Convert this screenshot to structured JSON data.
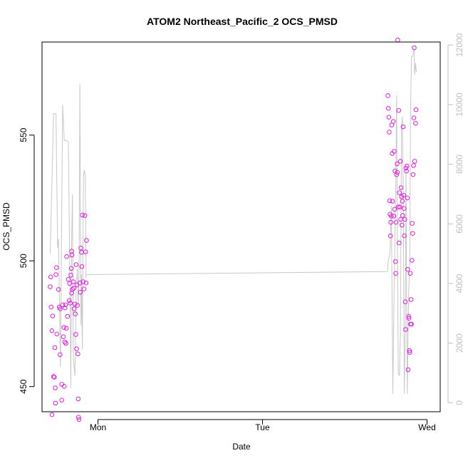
{
  "chart_data": {
    "type": "scatter",
    "title": "ATOM2 Northeast_Pacific_2 OCS_PMSD",
    "xlabel": "Date",
    "ylabel": "OCS_PMSD",
    "x_axis": {
      "ticks": [
        {
          "day": 1.0,
          "label": "Mon"
        },
        {
          "day": 2.0,
          "label": "Tue"
        },
        {
          "day": 3.0,
          "label": "Wed"
        }
      ],
      "range_days": [
        0.66,
        3.08
      ]
    },
    "y_left": {
      "range": [
        440,
        587
      ],
      "ticks": [
        450,
        500,
        550
      ]
    },
    "y_right": {
      "range": [
        -300,
        12100
      ],
      "ticks": [
        0,
        2000,
        4000,
        6000,
        8000,
        10000,
        12000
      ],
      "color": "#bfbfbf"
    },
    "points_color": "#e11de1",
    "line_color": "#c8c8c8",
    "points": [
      [
        0.713,
        493.6
      ],
      [
        0.71,
        489.7
      ],
      [
        0.715,
        481.6
      ],
      [
        0.72,
        472.2
      ],
      [
        0.72,
        438.8
      ],
      [
        0.725,
        478.1
      ],
      [
        0.73,
        454.0
      ],
      [
        0.735,
        453.7
      ],
      [
        0.738,
        465.5
      ],
      [
        0.74,
        449.5
      ],
      [
        0.742,
        443.4
      ],
      [
        0.745,
        494.5
      ],
      [
        0.748,
        497.3
      ],
      [
        0.75,
        470.9
      ],
      [
        0.76,
        488.6
      ],
      [
        0.765,
        481.6
      ],
      [
        0.77,
        480.9
      ],
      [
        0.77,
        462.7
      ],
      [
        0.78,
        450.9
      ],
      [
        0.78,
        444.6
      ],
      [
        0.785,
        482.5
      ],
      [
        0.79,
        469.8
      ],
      [
        0.793,
        473.5
      ],
      [
        0.795,
        450.1
      ],
      [
        0.798,
        467.7
      ],
      [
        0.8,
        481.3
      ],
      [
        0.803,
        482.5
      ],
      [
        0.805,
        467.2
      ],
      [
        0.808,
        473.2
      ],
      [
        0.81,
        501.7
      ],
      [
        0.815,
        477.9
      ],
      [
        0.82,
        492.6
      ],
      [
        0.825,
        484.2
      ],
      [
        0.828,
        491.0
      ],
      [
        0.832,
        483.2
      ],
      [
        0.835,
        494.3
      ],
      [
        0.838,
        497.0
      ],
      [
        0.84,
        487.2
      ],
      [
        0.84,
        503.8
      ],
      [
        0.842,
        502.3
      ],
      [
        0.845,
        488.6
      ],
      [
        0.85,
        491.7
      ],
      [
        0.852,
        489.1
      ],
      [
        0.855,
        480.9
      ],
      [
        0.86,
        482.8
      ],
      [
        0.862,
        478.9
      ],
      [
        0.865,
        470.7
      ],
      [
        0.868,
        498.5
      ],
      [
        0.87,
        465.0
      ],
      [
        0.872,
        490.4
      ],
      [
        0.875,
        482.3
      ],
      [
        0.878,
        463.0
      ],
      [
        0.88,
        445.1
      ],
      [
        0.882,
        437.8
      ],
      [
        0.885,
        436.9
      ],
      [
        0.89,
        491.2
      ],
      [
        0.893,
        487.5
      ],
      [
        0.896,
        505.1
      ],
      [
        0.9,
        503.4
      ],
      [
        0.902,
        497.7
      ],
      [
        0.905,
        518.2
      ],
      [
        0.91,
        491.7
      ],
      [
        0.915,
        488.8
      ],
      [
        0.92,
        518.0
      ],
      [
        0.925,
        503.6
      ],
      [
        0.928,
        491.2
      ],
      [
        0.93,
        508.1
      ],
      [
        2.762,
        565.7
      ],
      [
        2.765,
        560.6
      ],
      [
        2.768,
        557.1
      ],
      [
        2.77,
        551.2
      ],
      [
        2.773,
        523.9
      ],
      [
        2.775,
        518.5
      ],
      [
        2.778,
        509.9
      ],
      [
        2.78,
        515.3
      ],
      [
        2.783,
        517.8
      ],
      [
        2.785,
        554.0
      ],
      [
        2.788,
        542.7
      ],
      [
        2.79,
        523.7
      ],
      [
        2.795,
        555.4
      ],
      [
        2.798,
        517.8
      ],
      [
        2.8,
        543.5
      ],
      [
        2.803,
        520.5
      ],
      [
        2.805,
        535.7
      ],
      [
        2.808,
        499.7
      ],
      [
        2.81,
        495.0
      ],
      [
        2.812,
        515.3
      ],
      [
        2.815,
        534.3
      ],
      [
        2.818,
        538.6
      ],
      [
        2.82,
        535.2
      ],
      [
        2.822,
        587.8
      ],
      [
        2.825,
        521.4
      ],
      [
        2.828,
        559.8
      ],
      [
        2.83,
        507.1
      ],
      [
        2.832,
        527.1
      ],
      [
        2.835,
        521.4
      ],
      [
        2.838,
        539.6
      ],
      [
        2.84,
        516.5
      ],
      [
        2.842,
        529.1
      ],
      [
        2.845,
        525.5
      ],
      [
        2.848,
        514.2
      ],
      [
        2.85,
        523.7
      ],
      [
        2.852,
        518.0
      ],
      [
        2.855,
        553.3
      ],
      [
        2.858,
        526.1
      ],
      [
        2.86,
        520.8
      ],
      [
        2.862,
        510.0
      ],
      [
        2.865,
        516.5
      ],
      [
        2.868,
        483.7
      ],
      [
        2.87,
        472.7
      ],
      [
        2.872,
        536.9
      ],
      [
        2.875,
        535.7
      ],
      [
        2.878,
        537.7
      ],
      [
        2.88,
        525.0
      ],
      [
        2.882,
        496.6
      ],
      [
        2.885,
        456.7
      ],
      [
        2.888,
        477.9
      ],
      [
        2.89,
        477.2
      ],
      [
        2.893,
        464.3
      ],
      [
        2.895,
        463.6
      ],
      [
        2.898,
        495.0
      ],
      [
        2.9,
        474.8
      ],
      [
        2.903,
        484.6
      ],
      [
        2.905,
        474.8
      ],
      [
        2.908,
        500.2
      ],
      [
        2.91,
        514.9
      ],
      [
        2.913,
        510.9
      ],
      [
        2.915,
        534.3
      ],
      [
        2.918,
        537.9
      ],
      [
        2.92,
        556.8
      ],
      [
        2.922,
        584.7
      ],
      [
        2.925,
        539.6
      ],
      [
        2.93,
        554.7
      ],
      [
        2.933,
        560.1
      ]
    ],
    "line_right": [
      [
        0.71,
        5000
      ],
      [
        0.73,
        9700
      ],
      [
        0.745,
        9700
      ],
      [
        0.755,
        5200
      ],
      [
        0.76,
        5500
      ],
      [
        0.772,
        1200
      ],
      [
        0.785,
        10000
      ],
      [
        0.795,
        8800
      ],
      [
        0.81,
        8800
      ],
      [
        0.82,
        8750
      ],
      [
        0.83,
        3800
      ],
      [
        0.835,
        500
      ],
      [
        0.84,
        5500
      ],
      [
        0.845,
        7000
      ],
      [
        0.85,
        1500
      ],
      [
        0.86,
        900
      ],
      [
        0.868,
        3800
      ],
      [
        0.875,
        4500
      ],
      [
        0.88,
        3200
      ],
      [
        0.885,
        4400
      ],
      [
        0.89,
        10700
      ],
      [
        0.897,
        2600
      ],
      [
        0.9,
        4300
      ],
      [
        0.905,
        1800
      ],
      [
        0.912,
        7600
      ],
      [
        0.917,
        7800
      ],
      [
        0.923,
        7600
      ],
      [
        0.928,
        4200
      ],
      [
        0.93,
        4200
      ],
      [
        2.76,
        4400
      ],
      [
        2.765,
        4800
      ],
      [
        2.775,
        5000
      ],
      [
        2.783,
        6600
      ],
      [
        2.792,
        300
      ],
      [
        2.8,
        3800
      ],
      [
        2.81,
        7200
      ],
      [
        2.815,
        10300
      ],
      [
        2.82,
        5600
      ],
      [
        2.825,
        1000
      ],
      [
        2.832,
        900
      ],
      [
        2.838,
        2300
      ],
      [
        2.845,
        9200
      ],
      [
        2.85,
        9600
      ],
      [
        2.855,
        7400
      ],
      [
        2.862,
        300
      ],
      [
        2.868,
        2500
      ],
      [
        2.872,
        7900
      ],
      [
        2.875,
        4500
      ],
      [
        2.88,
        300
      ],
      [
        2.888,
        3600
      ],
      [
        2.895,
        4800
      ],
      [
        2.9,
        9800
      ],
      [
        2.905,
        11600
      ],
      [
        2.91,
        11600
      ],
      [
        2.915,
        11700
      ],
      [
        2.92,
        11900
      ],
      [
        2.925,
        11000
      ],
      [
        2.93,
        11400
      ],
      [
        2.935,
        11100
      ]
    ],
    "line_bridge": [
      [
        0.93,
        4300
      ],
      [
        2.76,
        4400
      ]
    ]
  }
}
